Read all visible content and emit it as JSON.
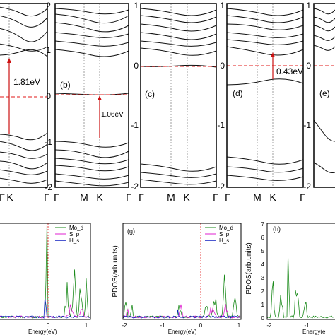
{
  "band_panels": [
    {
      "label": "",
      "kpoints": [
        "Γ",
        "K",
        "Γ"
      ],
      "gap": "1.81eV",
      "yticks": [
        "2",
        "1",
        "0",
        "-1",
        "-2"
      ],
      "ylim": [
        -2,
        2
      ]
    },
    {
      "label": "(b)",
      "kpoints": [
        "Γ",
        "M",
        "K",
        "Γ"
      ],
      "gap": "1.06eV",
      "yticks": [
        "2",
        "1",
        "0",
        "-1",
        "-2"
      ],
      "ylim": [
        -2,
        2
      ]
    },
    {
      "label": "(c)",
      "kpoints": [
        "Γ",
        "M",
        "K",
        "Γ"
      ],
      "gap": "",
      "yticks": [
        "1",
        "0",
        "-1",
        "-2"
      ],
      "ylim": [
        -2,
        1
      ]
    },
    {
      "label": "(d)",
      "kpoints": [
        "Γ",
        "M",
        "K",
        "Γ"
      ],
      "gap": "0.43eV",
      "yticks": [
        "1",
        "0",
        "-1",
        "-2"
      ],
      "ylim": [
        -2,
        1
      ]
    },
    {
      "label": "(e)",
      "kpoints": [],
      "gap": "",
      "yticks": [
        "1",
        "0",
        "-1",
        "-2"
      ],
      "ylim": [
        -2,
        1
      ]
    }
  ],
  "pdos_panels": [
    {
      "label": "",
      "ylabel": "",
      "xlabel": "Energy(eV)",
      "xticks": [
        "0",
        "1"
      ],
      "yticks": [],
      "legend": [
        "Mo_d",
        "S_p",
        "H_s"
      ]
    },
    {
      "label": "(g)",
      "ylabel": "PDOS(arb.units)",
      "xlabel": "Energy(eV)",
      "xticks": [
        "-2",
        "-1",
        "0",
        "1"
      ],
      "yticks": [],
      "legend": [
        "Mo_d",
        "S_p",
        "H_s"
      ]
    },
    {
      "label": "(h)",
      "ylabel": "PDOS(arb.units)",
      "xlabel": "Energy(e",
      "xticks": [
        "-2",
        "-1"
      ],
      "yticks": [
        "7",
        "6",
        "5",
        "4",
        "3",
        "2",
        "1",
        "0"
      ],
      "legend": []
    }
  ],
  "colors": {
    "band": "#111111",
    "fermi": "#e01818",
    "gap_arrow": "#cc1111",
    "mo_d": "#1a8a1a",
    "s_p": "#e020d0",
    "h_s": "#1020c0"
  },
  "chart_data": [
    {
      "type": "line",
      "panel": "band-a",
      "x": [
        "Γ",
        "K",
        "Γ"
      ],
      "ylim": [
        -2,
        2
      ],
      "band_gap_eV": 1.81,
      "vbm_eV": -0.9,
      "cbm_eV": 0.9,
      "fermi_eV": 0
    },
    {
      "type": "line",
      "panel": "band-b",
      "x": [
        "Γ",
        "M",
        "K",
        "Γ"
      ],
      "ylim": [
        -2,
        2
      ],
      "band_gap_eV": 1.06,
      "vbm_eV": -1.06,
      "cbm_eV": 0.0,
      "fermi_eV": 0
    },
    {
      "type": "line",
      "panel": "band-c",
      "x": [
        "Γ",
        "M",
        "K",
        "Γ"
      ],
      "ylim": [
        -2,
        1
      ],
      "fermi_eV": 0
    },
    {
      "type": "line",
      "panel": "band-d",
      "x": [
        "Γ",
        "M",
        "K",
        "Γ"
      ],
      "ylim": [
        -2,
        1
      ],
      "band_gap_eV": 0.43,
      "vbm_eV": -0.3,
      "cbm_eV": 0.13,
      "fermi_eV": 0
    },
    {
      "type": "line",
      "panel": "pdos-g",
      "xlim": [
        -2,
        1
      ],
      "series": [
        {
          "name": "Mo_d"
        },
        {
          "name": "S_p"
        },
        {
          "name": "H_s"
        }
      ]
    },
    {
      "type": "line",
      "panel": "pdos-h",
      "ylim": [
        0,
        7
      ],
      "series": [
        {
          "name": ""
        }
      ]
    }
  ]
}
